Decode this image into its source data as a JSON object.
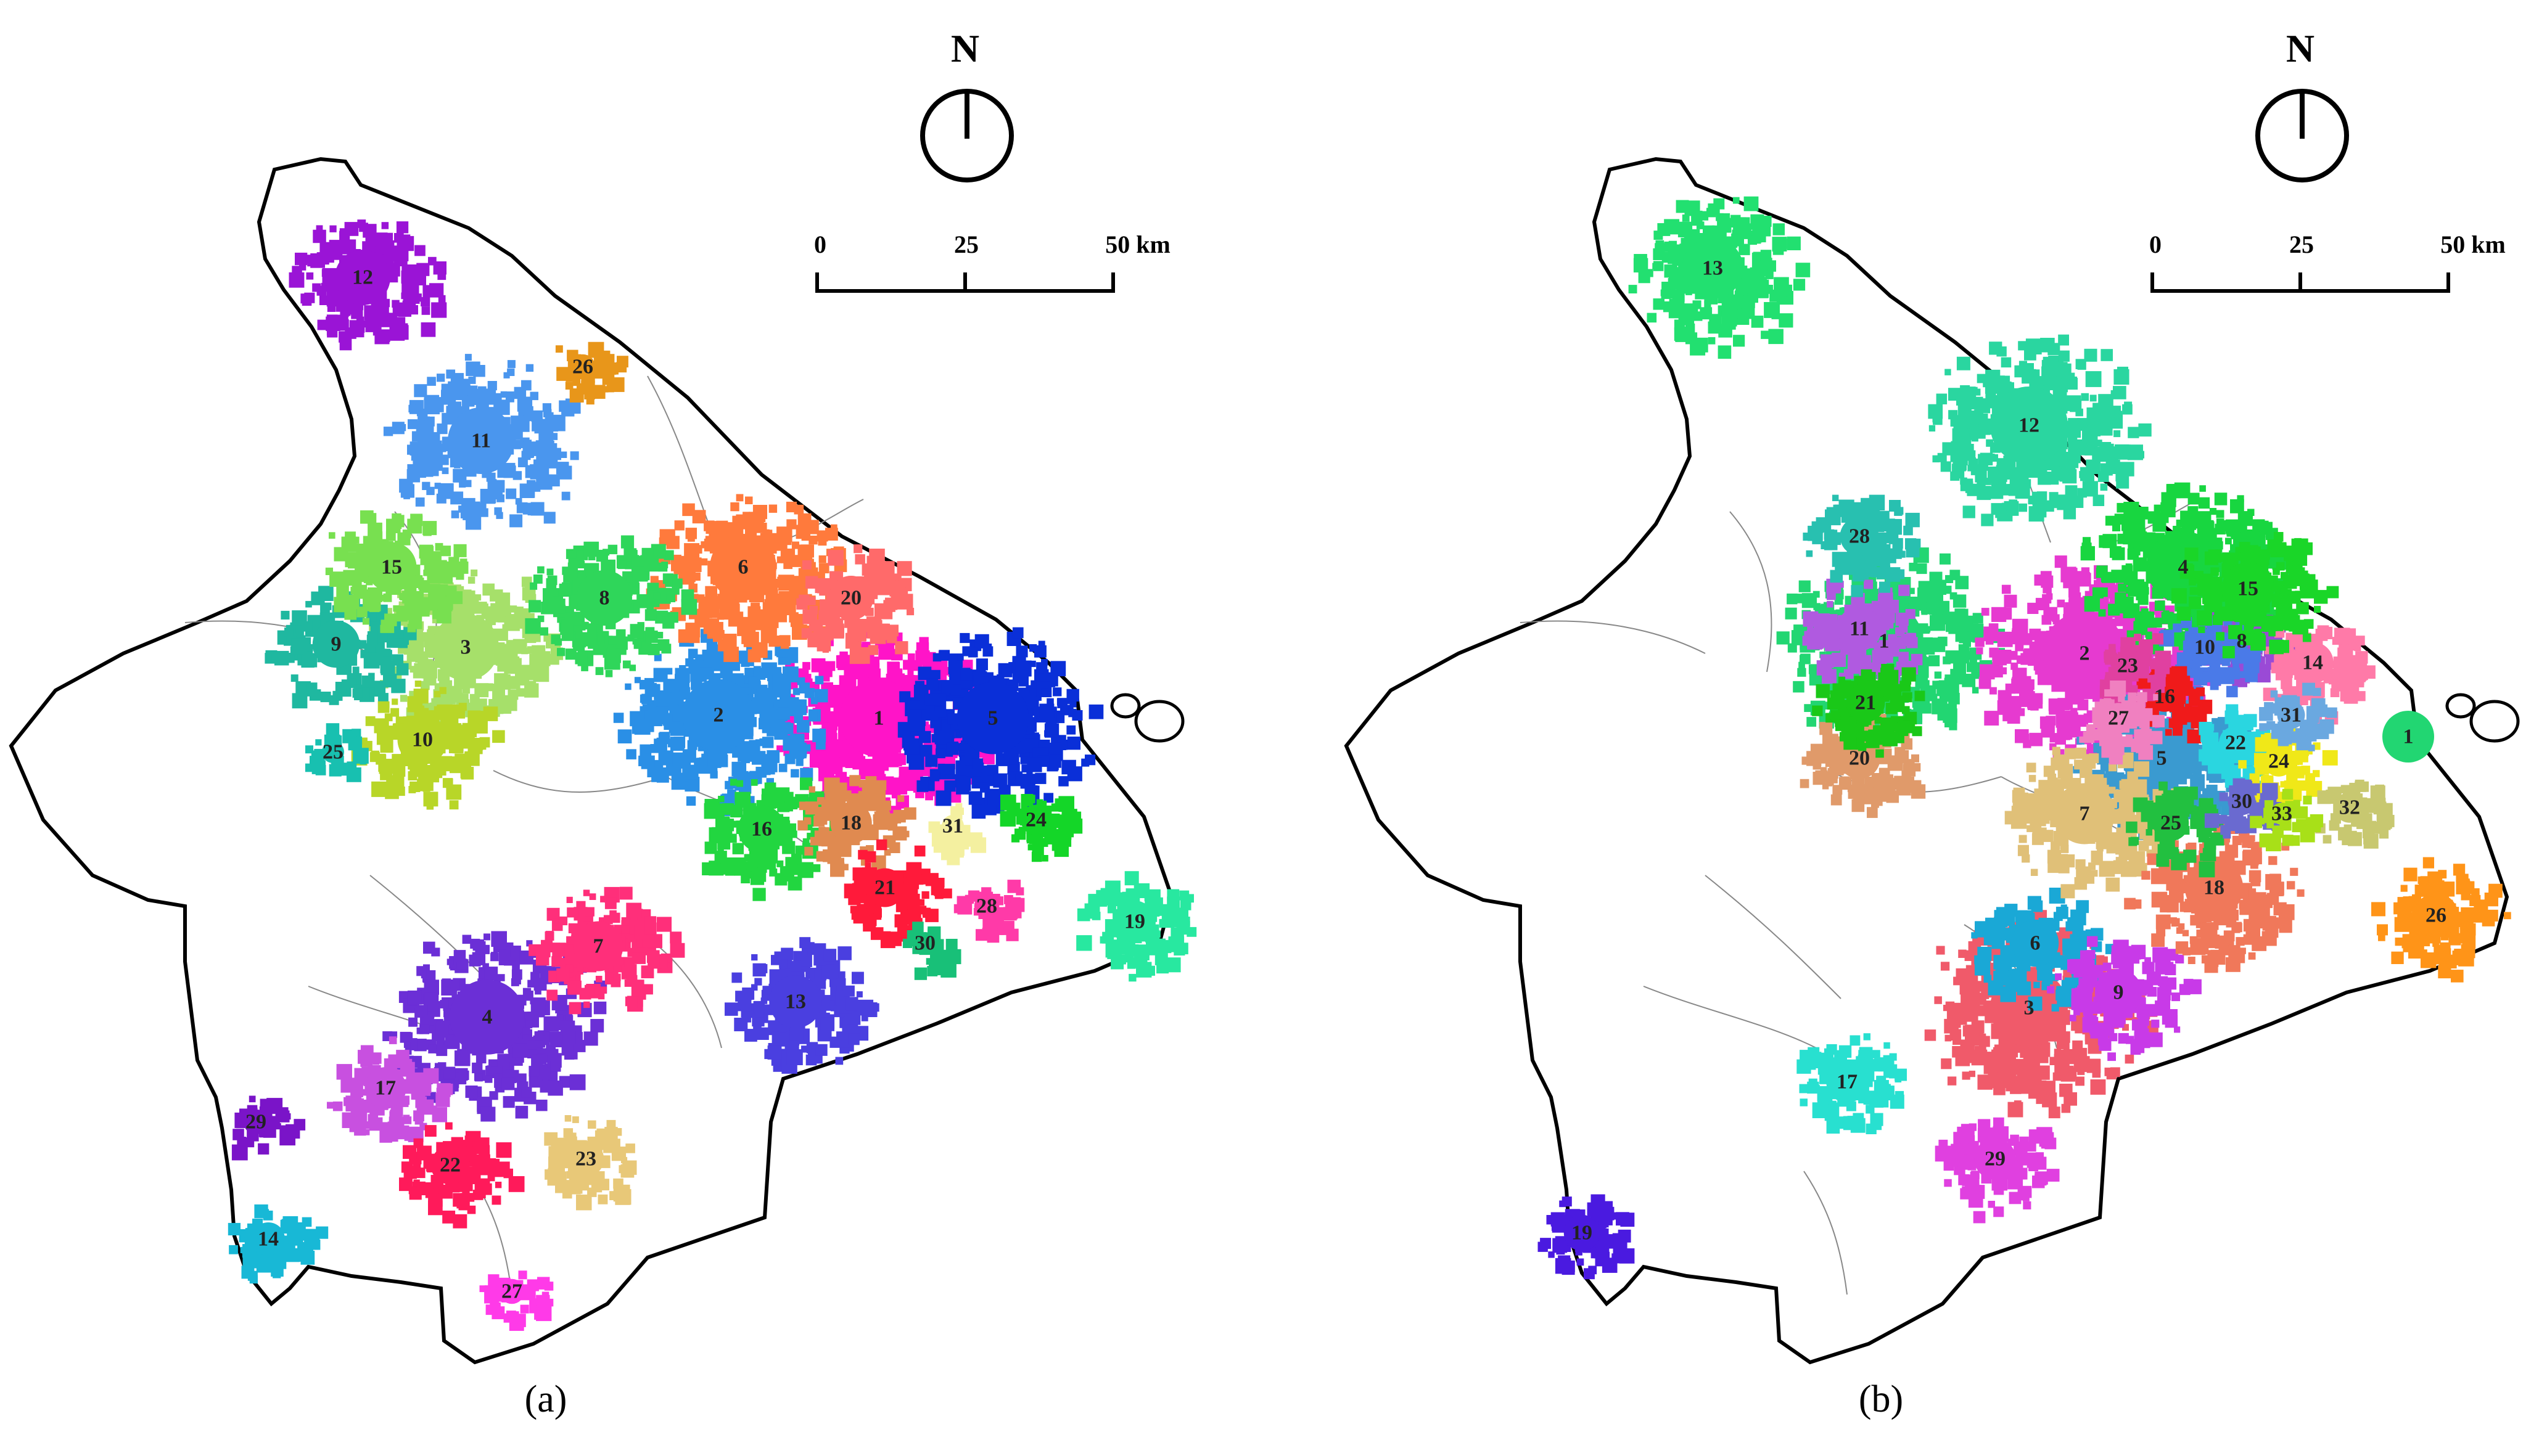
{
  "figure": {
    "panels": [
      {
        "id": "a",
        "caption": "(a)",
        "north_label": "N",
        "scale": {
          "labels": [
            "0",
            "25",
            "50 km"
          ]
        },
        "clusters": [
          {
            "label": "1",
            "color": "#ff14c8"
          },
          {
            "label": "2",
            "color": "#2a8fe6"
          },
          {
            "label": "3",
            "color": "#a6e06a"
          },
          {
            "label": "4",
            "color": "#6b2fd6"
          },
          {
            "label": "5",
            "color": "#0a2fd8"
          },
          {
            "label": "6",
            "color": "#ff7a3c"
          },
          {
            "label": "7",
            "color": "#ff2f7a"
          },
          {
            "label": "8",
            "color": "#2fd65a"
          },
          {
            "label": "9",
            "color": "#1fb8a0"
          },
          {
            "label": "10",
            "color": "#b8d628"
          },
          {
            "label": "11",
            "color": "#4a96ee"
          },
          {
            "label": "12",
            "color": "#9a14d6"
          },
          {
            "label": "13",
            "color": "#4a3fe0"
          },
          {
            "label": "14",
            "color": "#18b8d6"
          },
          {
            "label": "15",
            "color": "#78e050"
          },
          {
            "label": "16",
            "color": "#22d640"
          },
          {
            "label": "17",
            "color": "#c850e0"
          },
          {
            "label": "18",
            "color": "#e08a50"
          },
          {
            "label": "19",
            "color": "#28e8a0"
          },
          {
            "label": "20",
            "color": "#ff6a6a"
          },
          {
            "label": "21",
            "color": "#ff1a3a"
          },
          {
            "label": "22",
            "color": "#ff1a5a"
          },
          {
            "label": "23",
            "color": "#e8c878"
          },
          {
            "label": "24",
            "color": "#14d628"
          },
          {
            "label": "25",
            "color": "#18c0b0"
          },
          {
            "label": "26",
            "color": "#e8961a"
          },
          {
            "label": "27",
            "color": "#ff3ae8"
          },
          {
            "label": "28",
            "color": "#ff3aa8"
          },
          {
            "label": "29",
            "color": "#7a14c8"
          },
          {
            "label": "30",
            "color": "#18c078"
          },
          {
            "label": "31",
            "color": "#f4f0a0"
          }
        ]
      },
      {
        "id": "b",
        "caption": "(b)",
        "north_label": "N",
        "scale": {
          "labels": [
            "0",
            "25",
            "50 km"
          ]
        },
        "clusters": [
          {
            "label": "1",
            "color": "#22d672"
          },
          {
            "label": "2",
            "color": "#e63ad0"
          },
          {
            "label": "3",
            "color": "#f05a6a"
          },
          {
            "label": "4",
            "color": "#18d640"
          },
          {
            "label": "5",
            "color": "#3a9ad0"
          },
          {
            "label": "6",
            "color": "#1aa8d6"
          },
          {
            "label": "7",
            "color": "#e0c078"
          },
          {
            "label": "8",
            "color": "#9a4ad6"
          },
          {
            "label": "9",
            "color": "#c83ae8"
          },
          {
            "label": "10",
            "color": "#4a7ae8"
          },
          {
            "label": "11",
            "color": "#b05ae0"
          },
          {
            "label": "12",
            "color": "#2ad6a0"
          },
          {
            "label": "13",
            "color": "#22e070"
          },
          {
            "label": "14",
            "color": "#ff7aa8"
          },
          {
            "label": "15",
            "color": "#1ad628"
          },
          {
            "label": "16",
            "color": "#f01a1a"
          },
          {
            "label": "17",
            "color": "#28e0d0"
          },
          {
            "label": "18",
            "color": "#f0785a"
          },
          {
            "label": "19",
            "color": "#4a1ae0"
          },
          {
            "label": "20",
            "color": "#e09a6a"
          },
          {
            "label": "21",
            "color": "#1ac818"
          },
          {
            "label": "22",
            "color": "#2ad6e0"
          },
          {
            "label": "23",
            "color": "#e040a0"
          },
          {
            "label": "24",
            "color": "#f0e818"
          },
          {
            "label": "25",
            "color": "#22c040"
          },
          {
            "label": "26",
            "color": "#ff9418"
          },
          {
            "label": "27",
            "color": "#f080c0"
          },
          {
            "label": "28",
            "color": "#28c0b0"
          },
          {
            "label": "29",
            "color": "#e040e0"
          },
          {
            "label": "30",
            "color": "#6a6ad0"
          },
          {
            "label": "31",
            "color": "#6aa8e0"
          },
          {
            "label": "32",
            "color": "#c8c870"
          },
          {
            "label": "33",
            "color": "#a8e018"
          }
        ]
      }
    ]
  }
}
